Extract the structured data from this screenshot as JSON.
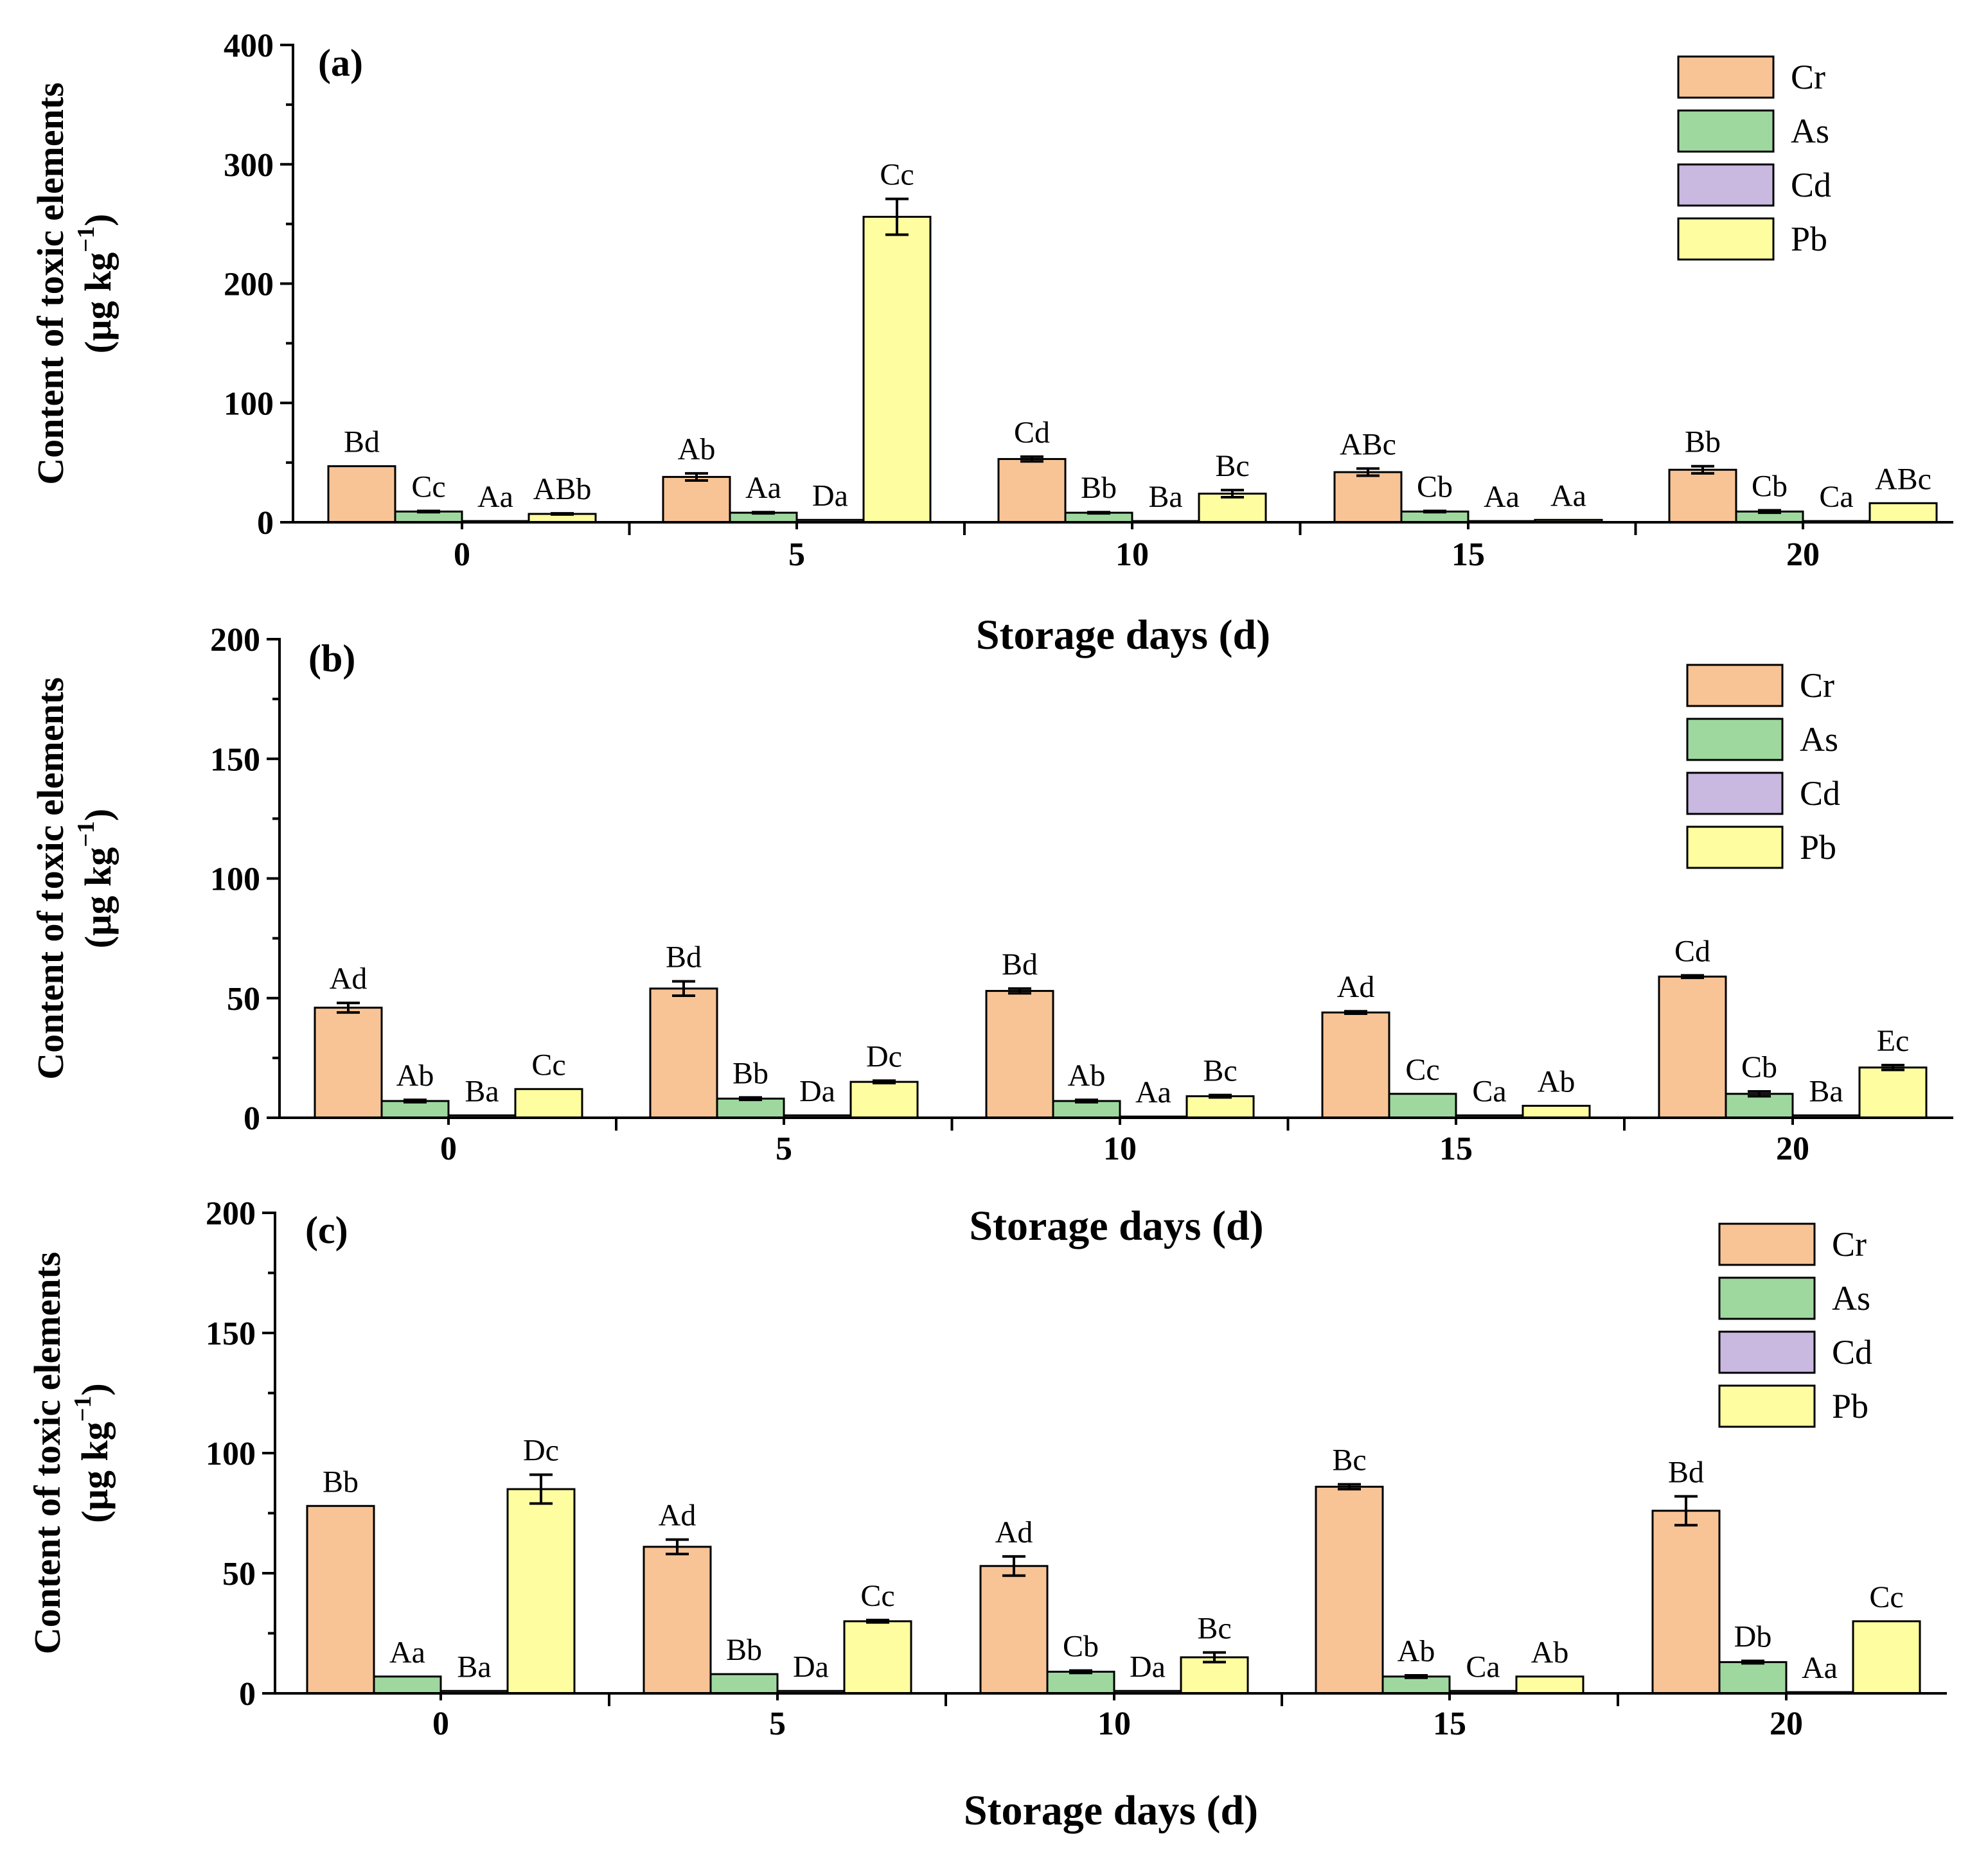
{
  "chart_data": [
    {
      "type": "bar",
      "panel_label": "(a)",
      "title": "",
      "xlabel": "Storage days (d)",
      "ylabel_line1": "Content of toxic elements",
      "ylabel_line2_pre": "(µg kg",
      "ylabel_line2_sup": "−1",
      "ylabel_line2_post": ")",
      "ylim": [
        0,
        400
      ],
      "yticks": [
        0,
        100,
        200,
        300,
        400
      ],
      "categories": [
        "0",
        "5",
        "10",
        "15",
        "20"
      ],
      "legend_position": "top-right",
      "series": [
        {
          "name": "Cr",
          "color": "#f8c496",
          "values": [
            47,
            38,
            53,
            42,
            44
          ],
          "errors": [
            0,
            3,
            2,
            3,
            3
          ],
          "letters": [
            "Bd",
            "Ab",
            "Cd",
            "ABc",
            "Bb"
          ]
        },
        {
          "name": "As",
          "color": "#9fd89f",
          "values": [
            9,
            8,
            8,
            9,
            9
          ],
          "errors": [
            0.5,
            0.5,
            0.5,
            0.5,
            1
          ],
          "letters": [
            "Cc",
            "Aa",
            "Bb",
            "Cb",
            "Cb"
          ]
        },
        {
          "name": "Cd",
          "color": "#c9b8e0",
          "values": [
            1,
            2,
            1,
            1,
            1
          ],
          "errors": [
            0,
            0,
            0,
            0,
            0
          ],
          "letters": [
            "Aa",
            "Da",
            "Ba",
            "Aa",
            "Ca"
          ]
        },
        {
          "name": "Pb",
          "color": "#fefea0",
          "values": [
            7,
            256,
            24,
            2,
            16
          ],
          "errors": [
            0.5,
            15,
            3,
            0,
            0
          ],
          "letters": [
            "ABb",
            "Cc",
            "Bc",
            "Aa",
            "ABc"
          ]
        }
      ]
    },
    {
      "type": "bar",
      "panel_label": "(b)",
      "title": "",
      "xlabel": "Storage days (d)",
      "ylabel_line1": "Content of toxic elements",
      "ylabel_line2_pre": "(µg kg",
      "ylabel_line2_sup": "−1",
      "ylabel_line2_post": ")",
      "ylim": [
        0,
        200
      ],
      "yticks": [
        0,
        50,
        100,
        150,
        200
      ],
      "categories": [
        "0",
        "5",
        "10",
        "15",
        "20"
      ],
      "legend_position": "top-right",
      "series": [
        {
          "name": "Cr",
          "color": "#f8c496",
          "values": [
            46,
            54,
            53,
            44,
            59
          ],
          "errors": [
            2,
            3,
            1,
            0.5,
            0.5
          ],
          "letters": [
            "Ad",
            "Bd",
            "Bd",
            "Ad",
            "Cd"
          ]
        },
        {
          "name": "As",
          "color": "#9fd89f",
          "values": [
            7,
            8,
            7,
            10,
            10
          ],
          "errors": [
            0.5,
            0.5,
            0.5,
            0,
            1
          ],
          "letters": [
            "Ab",
            "Bb",
            "Ab",
            "Cc",
            "Cb"
          ]
        },
        {
          "name": "Cd",
          "color": "#c9b8e0",
          "values": [
            1,
            1,
            0.5,
            1,
            1
          ],
          "errors": [
            0,
            0,
            0,
            0,
            0
          ],
          "letters": [
            "Ba",
            "Da",
            "Aa",
            "Ca",
            "Ba"
          ]
        },
        {
          "name": "Pb",
          "color": "#fefea0",
          "values": [
            12,
            15,
            9,
            5,
            21
          ],
          "errors": [
            0,
            0.5,
            0.5,
            0,
            1
          ],
          "letters": [
            "Cc",
            "Dc",
            "Bc",
            "Ab",
            "Ec"
          ]
        }
      ]
    },
    {
      "type": "bar",
      "panel_label": "(c)",
      "title": "",
      "xlabel": "Storage days (d)",
      "ylabel_line1": "Content of toxic elements",
      "ylabel_line2_pre": "(µg kg",
      "ylabel_line2_sup": "−1",
      "ylabel_line2_post": ")",
      "ylim": [
        0,
        200
      ],
      "yticks": [
        0,
        50,
        100,
        150,
        200
      ],
      "categories": [
        "0",
        "5",
        "10",
        "15",
        "20"
      ],
      "legend_position": "top-right",
      "series": [
        {
          "name": "Cr",
          "color": "#f8c496",
          "values": [
            78,
            61,
            53,
            86,
            76
          ],
          "errors": [
            0,
            3,
            4,
            1,
            6
          ],
          "letters": [
            "Bb",
            "Ad",
            "Ad",
            "Bc",
            "Bd"
          ]
        },
        {
          "name": "As",
          "color": "#9fd89f",
          "values": [
            7,
            8,
            9,
            7,
            13
          ],
          "errors": [
            0,
            0,
            0.5,
            0.5,
            0.5
          ],
          "letters": [
            "Aa",
            "Bb",
            "Cb",
            "Ab",
            "Db"
          ]
        },
        {
          "name": "Cd",
          "color": "#c9b8e0",
          "values": [
            1,
            1,
            1,
            1,
            0.5
          ],
          "errors": [
            0,
            0,
            0,
            0,
            0
          ],
          "letters": [
            "Ba",
            "Da",
            "Da",
            "Ca",
            "Aa"
          ]
        },
        {
          "name": "Pb",
          "color": "#fefea0",
          "values": [
            85,
            30,
            15,
            7,
            30
          ],
          "errors": [
            6,
            0.5,
            2,
            0,
            0
          ],
          "letters": [
            "Dc",
            "Cc",
            "Bc",
            "Ab",
            "Cc"
          ]
        }
      ]
    }
  ]
}
